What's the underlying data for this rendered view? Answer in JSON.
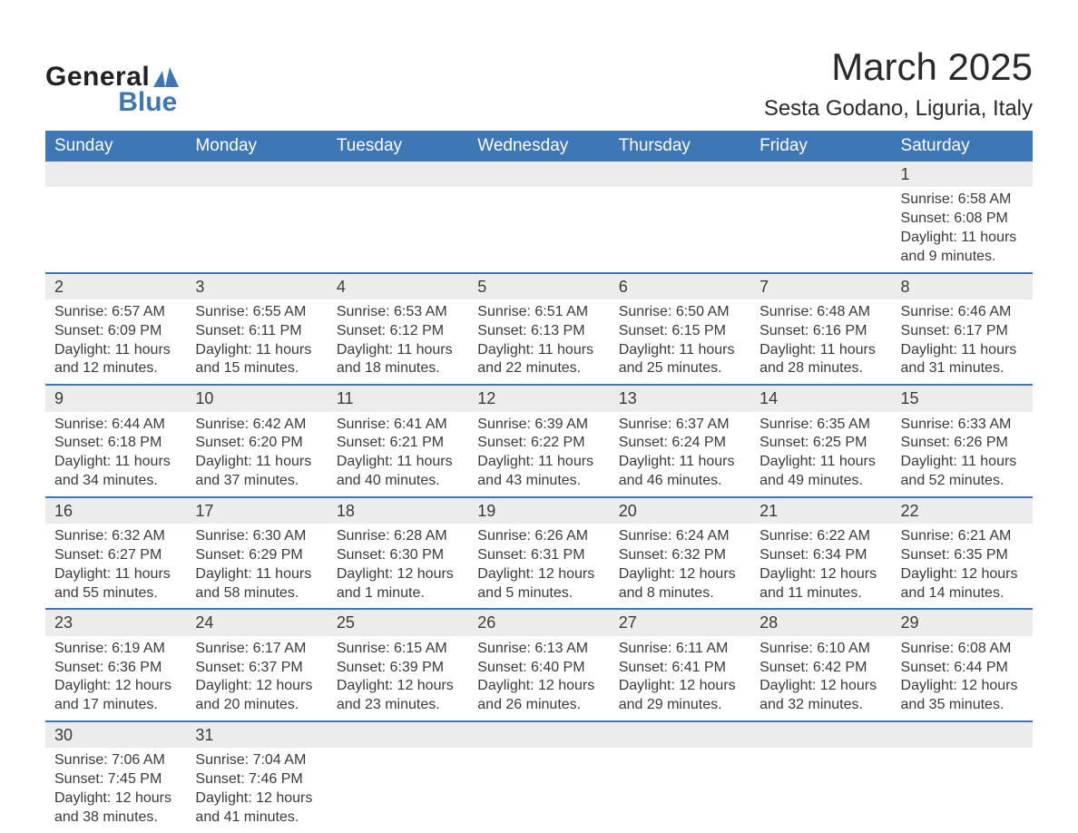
{
  "logo": {
    "general": "General",
    "blue": "Blue",
    "shape_color": "#3d77b6"
  },
  "title": "March 2025",
  "location": "Sesta Godano, Liguria, Italy",
  "colors": {
    "header_bg": "#3d77b6",
    "header_text": "#ffffff",
    "daynum_bg": "#ececec",
    "row_border": "#3d77b6",
    "body_text": "#3a3a3a",
    "page_bg": "#ffffff"
  },
  "typography": {
    "title_fontsize": 42,
    "location_fontsize": 24,
    "header_fontsize": 19,
    "daynum_fontsize": 18,
    "cell_fontsize": 16,
    "font_family": "Arial"
  },
  "layout": {
    "columns": 7,
    "aspect_w": 1188,
    "aspect_h": 918
  },
  "day_headers": [
    "Sunday",
    "Monday",
    "Tuesday",
    "Wednesday",
    "Thursday",
    "Friday",
    "Saturday"
  ],
  "weeks": [
    [
      null,
      null,
      null,
      null,
      null,
      null,
      {
        "n": "1",
        "sunrise": "6:58 AM",
        "sunset": "6:08 PM",
        "daylight": "11 hours and 9 minutes."
      }
    ],
    [
      {
        "n": "2",
        "sunrise": "6:57 AM",
        "sunset": "6:09 PM",
        "daylight": "11 hours and 12 minutes."
      },
      {
        "n": "3",
        "sunrise": "6:55 AM",
        "sunset": "6:11 PM",
        "daylight": "11 hours and 15 minutes."
      },
      {
        "n": "4",
        "sunrise": "6:53 AM",
        "sunset": "6:12 PM",
        "daylight": "11 hours and 18 minutes."
      },
      {
        "n": "5",
        "sunrise": "6:51 AM",
        "sunset": "6:13 PM",
        "daylight": "11 hours and 22 minutes."
      },
      {
        "n": "6",
        "sunrise": "6:50 AM",
        "sunset": "6:15 PM",
        "daylight": "11 hours and 25 minutes."
      },
      {
        "n": "7",
        "sunrise": "6:48 AM",
        "sunset": "6:16 PM",
        "daylight": "11 hours and 28 minutes."
      },
      {
        "n": "8",
        "sunrise": "6:46 AM",
        "sunset": "6:17 PM",
        "daylight": "11 hours and 31 minutes."
      }
    ],
    [
      {
        "n": "9",
        "sunrise": "6:44 AM",
        "sunset": "6:18 PM",
        "daylight": "11 hours and 34 minutes."
      },
      {
        "n": "10",
        "sunrise": "6:42 AM",
        "sunset": "6:20 PM",
        "daylight": "11 hours and 37 minutes."
      },
      {
        "n": "11",
        "sunrise": "6:41 AM",
        "sunset": "6:21 PM",
        "daylight": "11 hours and 40 minutes."
      },
      {
        "n": "12",
        "sunrise": "6:39 AM",
        "sunset": "6:22 PM",
        "daylight": "11 hours and 43 minutes."
      },
      {
        "n": "13",
        "sunrise": "6:37 AM",
        "sunset": "6:24 PM",
        "daylight": "11 hours and 46 minutes."
      },
      {
        "n": "14",
        "sunrise": "6:35 AM",
        "sunset": "6:25 PM",
        "daylight": "11 hours and 49 minutes."
      },
      {
        "n": "15",
        "sunrise": "6:33 AM",
        "sunset": "6:26 PM",
        "daylight": "11 hours and 52 minutes."
      }
    ],
    [
      {
        "n": "16",
        "sunrise": "6:32 AM",
        "sunset": "6:27 PM",
        "daylight": "11 hours and 55 minutes."
      },
      {
        "n": "17",
        "sunrise": "6:30 AM",
        "sunset": "6:29 PM",
        "daylight": "11 hours and 58 minutes."
      },
      {
        "n": "18",
        "sunrise": "6:28 AM",
        "sunset": "6:30 PM",
        "daylight": "12 hours and 1 minute."
      },
      {
        "n": "19",
        "sunrise": "6:26 AM",
        "sunset": "6:31 PM",
        "daylight": "12 hours and 5 minutes."
      },
      {
        "n": "20",
        "sunrise": "6:24 AM",
        "sunset": "6:32 PM",
        "daylight": "12 hours and 8 minutes."
      },
      {
        "n": "21",
        "sunrise": "6:22 AM",
        "sunset": "6:34 PM",
        "daylight": "12 hours and 11 minutes."
      },
      {
        "n": "22",
        "sunrise": "6:21 AM",
        "sunset": "6:35 PM",
        "daylight": "12 hours and 14 minutes."
      }
    ],
    [
      {
        "n": "23",
        "sunrise": "6:19 AM",
        "sunset": "6:36 PM",
        "daylight": "12 hours and 17 minutes."
      },
      {
        "n": "24",
        "sunrise": "6:17 AM",
        "sunset": "6:37 PM",
        "daylight": "12 hours and 20 minutes."
      },
      {
        "n": "25",
        "sunrise": "6:15 AM",
        "sunset": "6:39 PM",
        "daylight": "12 hours and 23 minutes."
      },
      {
        "n": "26",
        "sunrise": "6:13 AM",
        "sunset": "6:40 PM",
        "daylight": "12 hours and 26 minutes."
      },
      {
        "n": "27",
        "sunrise": "6:11 AM",
        "sunset": "6:41 PM",
        "daylight": "12 hours and 29 minutes."
      },
      {
        "n": "28",
        "sunrise": "6:10 AM",
        "sunset": "6:42 PM",
        "daylight": "12 hours and 32 minutes."
      },
      {
        "n": "29",
        "sunrise": "6:08 AM",
        "sunset": "6:44 PM",
        "daylight": "12 hours and 35 minutes."
      }
    ],
    [
      {
        "n": "30",
        "sunrise": "7:06 AM",
        "sunset": "7:45 PM",
        "daylight": "12 hours and 38 minutes."
      },
      {
        "n": "31",
        "sunrise": "7:04 AM",
        "sunset": "7:46 PM",
        "daylight": "12 hours and 41 minutes."
      },
      null,
      null,
      null,
      null,
      null
    ]
  ],
  "labels": {
    "sunrise": "Sunrise: ",
    "sunset": "Sunset: ",
    "daylight": "Daylight: "
  }
}
